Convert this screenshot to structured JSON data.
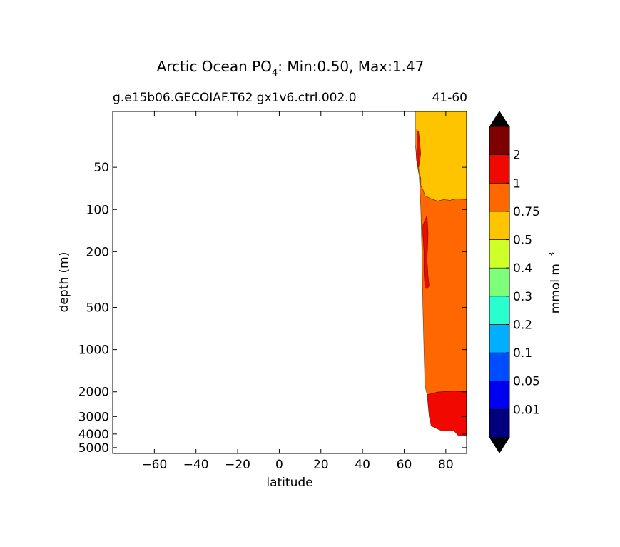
{
  "chart_data": {
    "type": "contour",
    "title_main": "Arctic Ocean PO",
    "title_sub": "4",
    "title_rest": ": Min:0.50, Max:1.47",
    "subtitle_left": "g.e15b06.GECOIAF.T62 gx1v6.ctrl.002.0",
    "subtitle_right": "41-60",
    "xlabel": "latitude",
    "ylabel": "depth (m)",
    "xlim": [
      -80,
      90
    ],
    "xticks": [
      -60,
      -40,
      -20,
      0,
      20,
      40,
      60,
      80
    ],
    "xtick_labels": [
      "−60",
      "−40",
      "−20",
      "0",
      "20",
      "40",
      "60",
      "80"
    ],
    "y_scale": "log",
    "ylim": [
      5500,
      20
    ],
    "yticks": [
      50,
      100,
      200,
      500,
      1000,
      2000,
      3000,
      4000,
      5000
    ],
    "ytick_labels": [
      "50",
      "100",
      "200",
      "500",
      "1000",
      "2000",
      "3000",
      "4000",
      "5000"
    ],
    "colorbar": {
      "label": "mmol m",
      "label_sup": "−3",
      "levels": [
        "0.01",
        "0.05",
        "0.1",
        "0.2",
        "0.3",
        "0.4",
        "0.5",
        "0.75",
        "1",
        "2"
      ],
      "colors": [
        "#00007f",
        "#0000f1",
        "#004cff",
        "#00b0ff",
        "#29ffce",
        "#7dff7a",
        "#ceff29",
        "#ffc400",
        "#ff6800",
        "#f10800",
        "#7f0000"
      ],
      "under_color": "#000000",
      "over_color": "#000000"
    },
    "regions": [
      {
        "band": "0.5-0.75",
        "color": "#ffc400",
        "points": [
          [
            65.5,
            20
          ],
          [
            90,
            20
          ],
          [
            90,
            85
          ],
          [
            85,
            84
          ],
          [
            82,
            86
          ],
          [
            79,
            85
          ],
          [
            76,
            87
          ],
          [
            73,
            84
          ],
          [
            70,
            80
          ],
          [
            69,
            72
          ],
          [
            68,
            68
          ],
          [
            68,
            60
          ],
          [
            67,
            55
          ],
          [
            66,
            45
          ],
          [
            65.5,
            35
          ]
        ]
      },
      {
        "band": "0.75-1",
        "color": "#ff6800",
        "points": [
          [
            65.5,
            35
          ],
          [
            66,
            45
          ],
          [
            67,
            55
          ],
          [
            68,
            60
          ],
          [
            68,
            68
          ],
          [
            69,
            72
          ],
          [
            70,
            80
          ],
          [
            73,
            84
          ],
          [
            76,
            87
          ],
          [
            79,
            85
          ],
          [
            82,
            86
          ],
          [
            85,
            84
          ],
          [
            90,
            85
          ],
          [
            90,
            2000
          ],
          [
            84,
            1980
          ],
          [
            80,
            1990
          ],
          [
            76,
            2010
          ],
          [
            74,
            2050
          ],
          [
            71,
            2100
          ],
          [
            70,
            1800
          ],
          [
            69.5,
            1000
          ],
          [
            69,
            500
          ],
          [
            68.5,
            200
          ],
          [
            68,
            100
          ],
          [
            67.5,
            70
          ],
          [
            67,
            50
          ],
          [
            66,
            45
          ]
        ]
      },
      {
        "band": "1-2",
        "color": "#f10800",
        "points": [
          [
            71,
            2100
          ],
          [
            74,
            2050
          ],
          [
            76,
            2010
          ],
          [
            80,
            1990
          ],
          [
            84,
            1980
          ],
          [
            90,
            2000
          ],
          [
            90,
            4100
          ],
          [
            86,
            4100
          ],
          [
            84,
            3800
          ],
          [
            78,
            3800
          ],
          [
            73,
            3500
          ],
          [
            72,
            3000
          ]
        ]
      },
      {
        "band": "1-2",
        "color": "#f10800",
        "points": [
          [
            69,
            130
          ],
          [
            71,
            110
          ],
          [
            71.5,
            150
          ],
          [
            71,
            230
          ],
          [
            71.5,
            300
          ],
          [
            72,
            350
          ],
          [
            71,
            370
          ],
          [
            70,
            360
          ],
          [
            69.5,
            280
          ],
          [
            69.5,
            200
          ],
          [
            69,
            150
          ]
        ]
      },
      {
        "band": "1-2",
        "color": "#f10800",
        "points": [
          [
            66,
            27
          ],
          [
            67,
            28
          ],
          [
            68,
            40
          ],
          [
            67,
            50
          ],
          [
            66,
            45
          ]
        ]
      }
    ]
  }
}
